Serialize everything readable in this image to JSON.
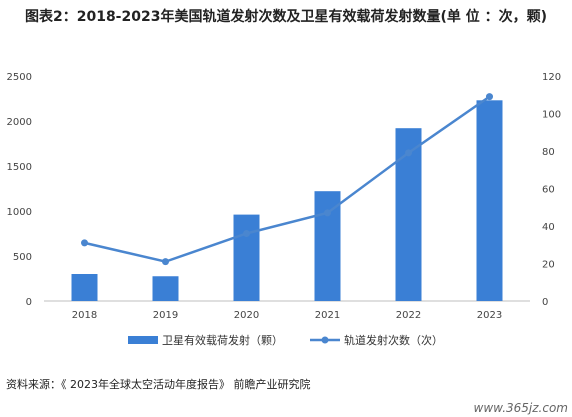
{
  "header": {
    "label": "图表2：",
    "text": "2018-2023年美国轨道发射次数及卫星有效载荷发射数量(单 位 ：次，颗)"
  },
  "source": "资料来源：《 2023年全球太空活动年度报告》 前瞻产业研究院",
  "corner_mark": "www.365jz.com",
  "chart_data": {
    "type": "bar+line",
    "categories": [
      "2018",
      "2019",
      "2020",
      "2021",
      "2022",
      "2023"
    ],
    "left_axis": {
      "ticks": [
        "0",
        "500",
        "1000",
        "1500",
        "2000",
        "2500"
      ],
      "range": [
        0,
        2500
      ]
    },
    "right_axis": {
      "ticks": [
        "0",
        "20",
        "40",
        "60",
        "80",
        "100",
        "120"
      ],
      "range": [
        0,
        120
      ]
    },
    "series": [
      {
        "name": "卫星有效载荷发射（颗）",
        "type": "bar",
        "axis": "left",
        "color": "#3a7fd5",
        "values": [
          300,
          275,
          960,
          1220,
          1920,
          2230
        ]
      },
      {
        "name": "轨道发射次数（次）",
        "type": "line",
        "axis": "right",
        "color": "#4a86cf",
        "values": [
          31,
          21,
          36,
          47,
          79,
          109
        ]
      }
    ],
    "grid": false,
    "legend_position": "bottom"
  }
}
